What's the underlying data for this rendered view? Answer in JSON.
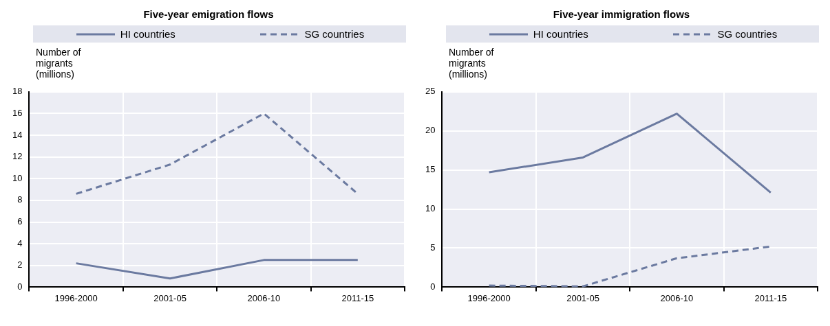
{
  "chart_data": [
    {
      "type": "line",
      "title": "Five-year emigration flows",
      "ylabel": "Number of migrants (millions)",
      "categories": [
        "1996-2000",
        "2001-05",
        "2006-10",
        "2011-15"
      ],
      "series": [
        {
          "name": "HI countries",
          "color": "#6b7aa0",
          "line_style": "solid",
          "values": [
            2.2,
            0.8,
            2.5,
            2.5
          ]
        },
        {
          "name": "SG countries",
          "color": "#6b7aa0",
          "line_style": "dashed",
          "values": [
            8.6,
            11.3,
            16.0,
            8.6
          ]
        }
      ],
      "ylim": [
        0,
        18
      ],
      "yticks": [
        0,
        2,
        4,
        6,
        8,
        10,
        12,
        14,
        16,
        18
      ],
      "grid": true,
      "legend": "top",
      "marker": "none"
    },
    {
      "type": "line",
      "title": "Five-year immigration flows",
      "ylabel": "Number of migrants (millions)",
      "categories": [
        "1996-2000",
        "2001-05",
        "2006-10",
        "2011-15"
      ],
      "series": [
        {
          "name": "HI countries",
          "color": "#6b7aa0",
          "line_style": "solid",
          "values": [
            14.7,
            16.6,
            22.2,
            12.1
          ]
        },
        {
          "name": "SG countries",
          "color": "#6b7aa0",
          "line_style": "dashed",
          "values": [
            0.2,
            0.1,
            3.7,
            5.2
          ]
        }
      ],
      "ylim": [
        0,
        25
      ],
      "yticks": [
        0,
        5,
        10,
        15,
        20,
        25
      ],
      "grid": true,
      "legend": "top",
      "marker": "none"
    }
  ]
}
